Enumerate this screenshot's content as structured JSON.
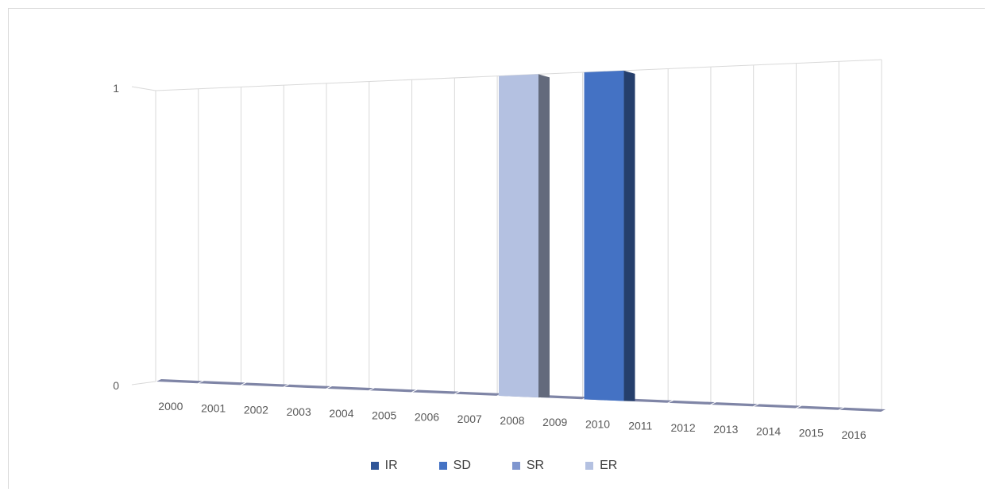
{
  "chart_data": {
    "type": "bar",
    "title": "",
    "xlabel": "",
    "ylabel": "",
    "categories": [
      "2000",
      "2001",
      "2002",
      "2003",
      "2004",
      "2005",
      "2006",
      "2007",
      "2008",
      "2009",
      "2010",
      "2011",
      "2012",
      "2013",
      "2014",
      "2015",
      "2016"
    ],
    "series": [
      {
        "name": "IR",
        "color": "#2f5597",
        "values": [
          0,
          0,
          0,
          0,
          0,
          0,
          0,
          0,
          0,
          0,
          0,
          0,
          0,
          0,
          0,
          0,
          0
        ]
      },
      {
        "name": "SD",
        "color": "#4472c4",
        "values": [
          0,
          0,
          0,
          0,
          0,
          0,
          0,
          0,
          0,
          0,
          1,
          0,
          0,
          0,
          0,
          0,
          0
        ]
      },
      {
        "name": "SR",
        "color": "#7f96cf",
        "values": [
          0,
          0,
          0,
          0,
          0,
          0,
          0,
          0,
          0,
          0,
          0,
          0,
          0,
          0,
          0,
          0,
          0
        ]
      },
      {
        "name": "ER",
        "color": "#b4c1e1",
        "values": [
          0,
          0,
          0,
          0,
          0,
          0,
          0,
          0,
          1,
          0,
          0,
          0,
          0,
          0,
          0,
          0,
          0
        ]
      }
    ],
    "ylim": [
      0,
      1
    ],
    "yticks": [
      "0",
      "1"
    ],
    "grid": true,
    "legend_position": "bottom",
    "style": "3d-perspective"
  }
}
